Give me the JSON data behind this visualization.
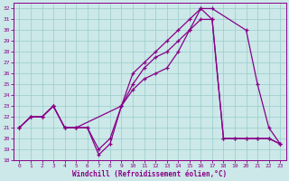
{
  "xlabel": "Windchill (Refroidissement éolien,°C)",
  "xlim": [
    -0.5,
    23.5
  ],
  "ylim": [
    18,
    32.5
  ],
  "yticks": [
    18,
    19,
    20,
    21,
    22,
    23,
    24,
    25,
    26,
    27,
    28,
    29,
    30,
    31,
    32
  ],
  "xticks": [
    0,
    1,
    2,
    3,
    4,
    5,
    6,
    7,
    8,
    9,
    10,
    11,
    12,
    13,
    14,
    15,
    16,
    17,
    18,
    19,
    20,
    21,
    22,
    23
  ],
  "bg_color": "#cce8e8",
  "line_color": "#880088",
  "grid_color": "#99cccc",
  "line1_x": [
    0,
    1,
    2,
    3,
    4,
    5,
    9,
    10,
    11,
    12,
    13,
    14,
    15,
    16,
    17,
    20,
    21,
    22,
    23
  ],
  "line1_y": [
    21,
    22,
    22,
    23,
    21,
    21,
    23,
    26,
    27,
    28,
    29,
    30,
    31,
    32,
    32,
    30,
    25,
    21,
    19.5
  ],
  "line2_x": [
    0,
    1,
    2,
    3,
    4,
    5,
    6,
    7,
    8,
    9,
    10,
    11,
    12,
    13,
    14,
    15,
    16,
    17,
    18,
    19,
    20,
    21,
    22,
    23
  ],
  "line2_y": [
    21,
    22,
    22,
    23,
    21,
    21,
    21,
    18.5,
    19.5,
    23,
    25,
    26.5,
    27.5,
    28,
    29,
    30,
    31,
    31,
    20,
    20,
    20,
    20,
    20,
    19.5
  ],
  "line3_x": [
    0,
    1,
    2,
    3,
    4,
    5,
    6,
    7,
    8,
    9,
    10,
    11,
    12,
    13,
    14,
    15,
    16,
    17,
    18,
    19,
    20,
    21,
    22,
    23
  ],
  "line3_y": [
    21,
    22,
    22,
    23,
    21,
    21,
    21,
    19,
    20,
    23,
    24.5,
    25.5,
    26,
    26.5,
    28,
    30,
    32,
    31,
    20,
    20,
    20,
    20,
    20,
    19.5
  ]
}
